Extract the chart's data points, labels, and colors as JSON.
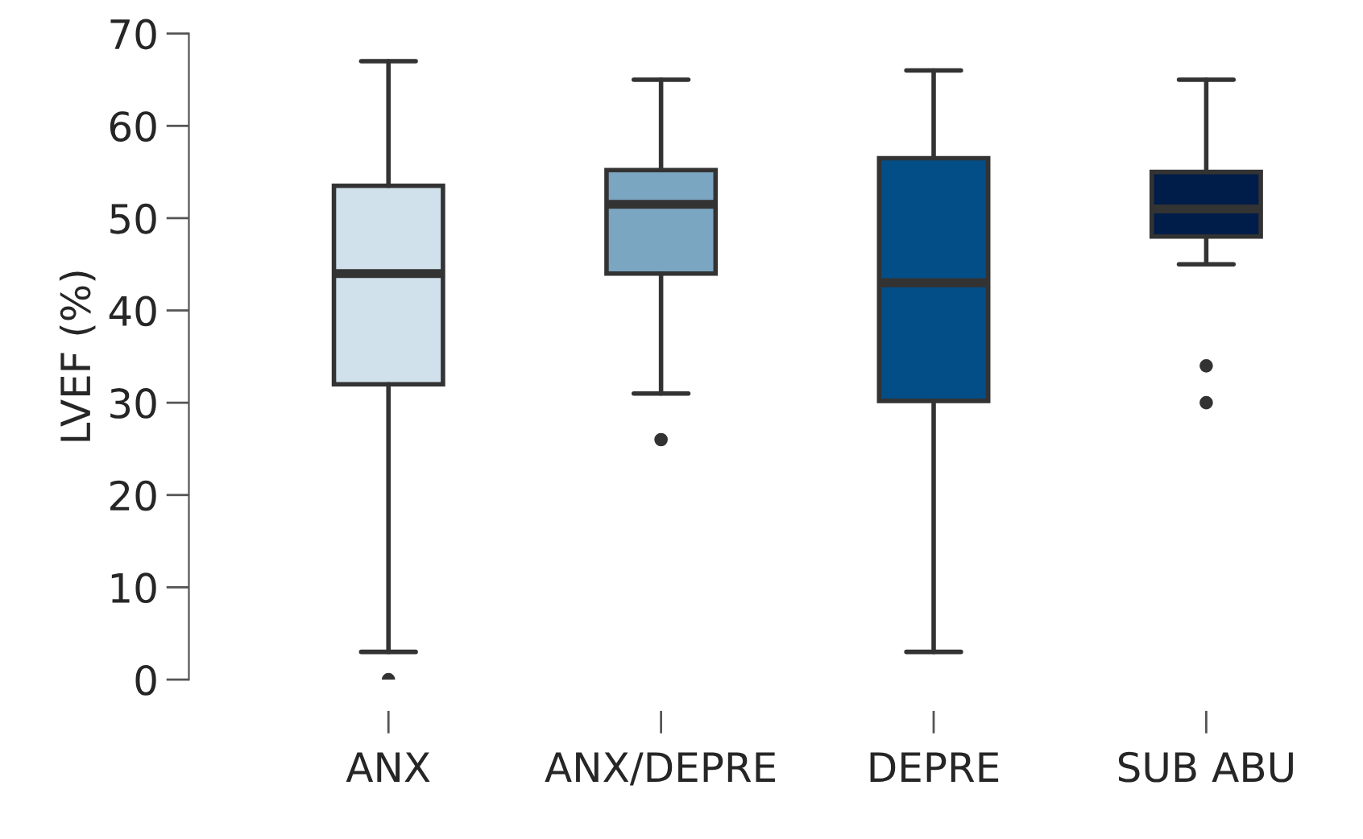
{
  "chart_data": {
    "type": "box",
    "ylabel": "LVEF (%)",
    "categories": [
      "ANX",
      "ANX/DEPRE",
      "DEPRE",
      "SUB ABU"
    ],
    "boxes": [
      {
        "low": 3,
        "q1": 32,
        "median": 44,
        "q3": 53.5,
        "high": 67,
        "outliers": [
          0
        ]
      },
      {
        "low": 31,
        "q1": 44,
        "median": 51.5,
        "q3": 55.2,
        "high": 65,
        "outliers": [
          26
        ]
      },
      {
        "low": 3,
        "q1": 30.2,
        "median": 43,
        "q3": 56.5,
        "high": 66
      },
      {
        "low": 45,
        "q1": 48,
        "median": 51,
        "q3": 55,
        "high": 65,
        "outliers": [
          34,
          30
        ]
      }
    ],
    "colors": [
      "#d0e1ec",
      "#7aa6c2",
      "#034e86",
      "#001d4a"
    ],
    "ylim": [
      0,
      70
    ],
    "yticks": [
      0,
      10,
      20,
      30,
      40,
      50,
      60,
      70
    ],
    "grid": false,
    "legend": false
  }
}
